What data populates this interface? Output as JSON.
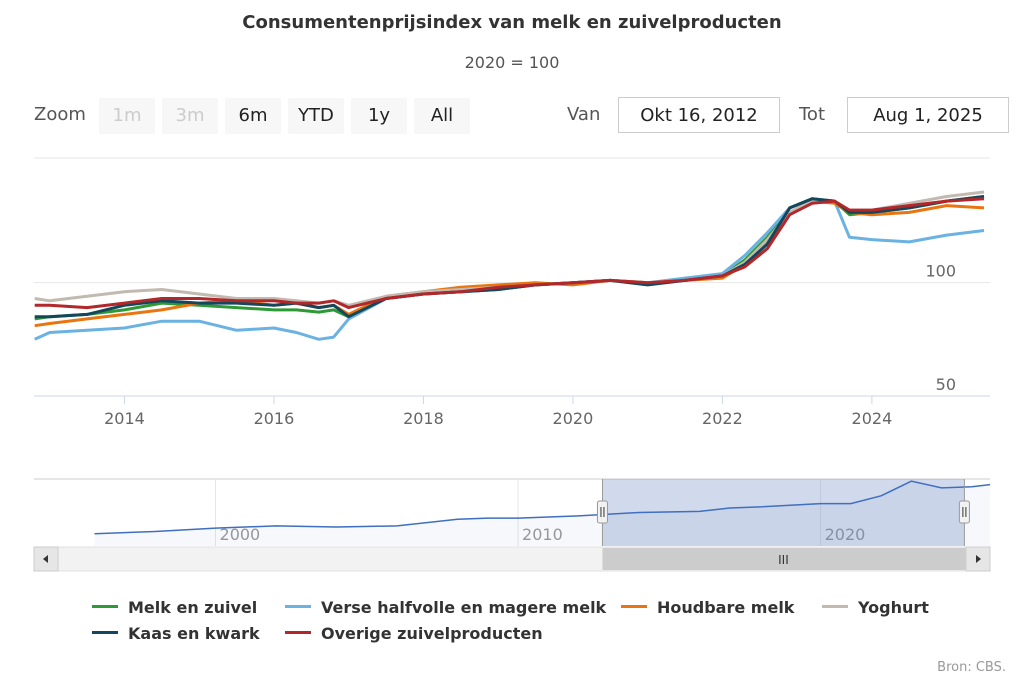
{
  "header": {
    "title": "Consumentenprijsindex van melk en zuivelproducten",
    "subtitle": "2020 = 100"
  },
  "zoom": {
    "label": "Zoom",
    "buttons": [
      {
        "label": "1m",
        "enabled": false
      },
      {
        "label": "3m",
        "enabled": false
      },
      {
        "label": "6m",
        "enabled": true
      },
      {
        "label": "YTD",
        "enabled": true
      },
      {
        "label": "1y",
        "enabled": true
      },
      {
        "label": "All",
        "enabled": true
      }
    ]
  },
  "range": {
    "from_label": "Van",
    "from_value": "Okt 16, 2012",
    "to_label": "Tot",
    "to_value": "Aug 1, 2025"
  },
  "navigator": {
    "x_ticks": [
      "2000",
      "2010",
      "2020"
    ],
    "scrollbar_grip": "III"
  },
  "credits": "Bron: CBS.",
  "chart_data": {
    "type": "line",
    "title": "Consumentenprijsindex van melk en zuivelproducten",
    "subtitle": "2020 = 100",
    "xlabel": "",
    "ylabel": "",
    "x_range": [
      2012.79,
      2025.58
    ],
    "ylim": [
      50,
      155
    ],
    "y_ticks": [
      50,
      100
    ],
    "x_ticks": [
      2014,
      2016,
      2018,
      2020,
      2022,
      2024
    ],
    "legend_position": "bottom",
    "x": [
      2012.8,
      2013.0,
      2013.5,
      2014.0,
      2014.5,
      2015.0,
      2015.5,
      2016.0,
      2016.3,
      2016.6,
      2016.8,
      2017.0,
      2017.5,
      2018.0,
      2018.5,
      2019.0,
      2019.5,
      2020.0,
      2020.5,
      2021.0,
      2021.5,
      2022.0,
      2022.3,
      2022.6,
      2022.9,
      2023.2,
      2023.5,
      2023.7,
      2024.0,
      2024.5,
      2025.0,
      2025.5
    ],
    "series": [
      {
        "name": "Melk en zuivel",
        "color": "#2e9a36",
        "values": [
          84,
          85,
          86,
          88,
          91,
          90,
          89,
          88,
          88,
          87,
          88,
          85,
          93,
          95,
          96,
          97,
          99,
          100,
          101,
          100,
          101,
          103,
          110,
          120,
          133,
          137,
          136,
          130,
          131,
          133,
          136,
          138
        ]
      },
      {
        "name": "Verse halfvolle en magere melk",
        "color": "#6ab2e2",
        "values": [
          75,
          78,
          79,
          80,
          83,
          83,
          79,
          80,
          78,
          75,
          76,
          84,
          93,
          95,
          96,
          97,
          99,
          100,
          101,
          100,
          102,
          104,
          112,
          122,
          133,
          137,
          136,
          120,
          119,
          118,
          121,
          123
        ]
      },
      {
        "name": "Houdbare melk",
        "color": "#e8750f",
        "values": [
          81,
          82,
          84,
          86,
          88,
          91,
          92,
          90,
          91,
          89,
          90,
          86,
          94,
          96,
          98,
          99,
          100,
          99,
          101,
          100,
          101,
          102,
          108,
          118,
          131,
          136,
          135,
          131,
          130,
          131,
          134,
          133
        ]
      },
      {
        "name": "Yoghurt",
        "color": "#c2b9b0",
        "values": [
          93,
          92,
          94,
          96,
          97,
          95,
          93,
          93,
          92,
          91,
          92,
          90,
          94,
          96,
          97,
          98,
          99,
          100,
          101,
          100,
          101,
          103,
          109,
          119,
          131,
          136,
          136,
          132,
          132,
          135,
          138,
          140
        ]
      },
      {
        "name": "Kaas en kwark",
        "color": "#14475c",
        "values": [
          85,
          85,
          86,
          90,
          92,
          91,
          91,
          90,
          91,
          89,
          90,
          85,
          93,
          95,
          96,
          97,
          99,
          100,
          101,
          99,
          101,
          103,
          108,
          117,
          133,
          137,
          136,
          131,
          131,
          133,
          136,
          138
        ]
      },
      {
        "name": "Overige zuivelproducten",
        "color": "#b2272a",
        "values": [
          90,
          90,
          89,
          91,
          93,
          93,
          92,
          92,
          91,
          91,
          92,
          89,
          93,
          95,
          96,
          98,
          99,
          100,
          101,
          100,
          101,
          103,
          107,
          115,
          130,
          135,
          136,
          132,
          132,
          134,
          136,
          137
        ]
      }
    ],
    "navigator_x": [
      1996,
      1998,
      2000,
      2002,
      2004,
      2006,
      2008,
      2009,
      2010,
      2012,
      2014,
      2016,
      2017,
      2018,
      2020,
      2021,
      2022,
      2023,
      2024,
      2025,
      2025.6
    ],
    "navigator_values": [
      66,
      68,
      71,
      73,
      72,
      73,
      79,
      80,
      80,
      82,
      85,
      86,
      89,
      90,
      93,
      93,
      100,
      113,
      107,
      108,
      110
    ]
  },
  "legend": {
    "items": [
      {
        "label": "Melk en zuivel",
        "color": "#2e9a36"
      },
      {
        "label": "Verse halfvolle en magere melk",
        "color": "#6ab2e2"
      },
      {
        "label": "Houdbare melk",
        "color": "#e8750f"
      },
      {
        "label": "Yoghurt",
        "color": "#c2b9b0"
      },
      {
        "label": "Kaas en kwark",
        "color": "#14475c"
      },
      {
        "label": "Overige zuivelproducten",
        "color": "#b2272a"
      }
    ]
  }
}
